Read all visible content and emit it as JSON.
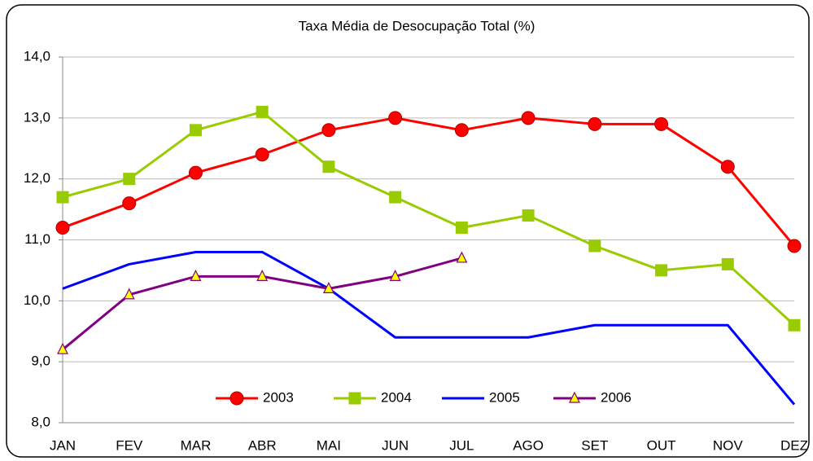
{
  "chart_data": {
    "type": "line",
    "title": "Taxa Média de Desocupação Total (%)",
    "categories": [
      "JAN",
      "FEV",
      "MAR",
      "ABR",
      "MAI",
      "JUN",
      "JUL",
      "AGO",
      "SET",
      "OUT",
      "NOV",
      "DEZ"
    ],
    "series": [
      {
        "name": "2003",
        "color": "#ff0000",
        "marker": "circle",
        "values": [
          11.2,
          11.6,
          12.1,
          12.4,
          12.8,
          13.0,
          12.8,
          13.0,
          12.9,
          12.9,
          12.2,
          10.9
        ]
      },
      {
        "name": "2004",
        "color": "#99cc00",
        "marker": "square",
        "values": [
          11.7,
          12.0,
          12.8,
          13.1,
          12.2,
          11.7,
          11.2,
          11.4,
          10.9,
          10.5,
          10.6,
          9.6
        ]
      },
      {
        "name": "2005",
        "color": "#0000ff",
        "marker": "none",
        "values": [
          10.2,
          10.6,
          10.8,
          10.8,
          10.2,
          9.4,
          9.4,
          9.4,
          9.6,
          9.6,
          9.6,
          8.3
        ]
      },
      {
        "name": "2006",
        "color": "#800080",
        "marker": "triangle",
        "values": [
          9.2,
          10.1,
          10.4,
          10.4,
          10.2,
          10.4,
          10.7,
          null,
          null,
          null,
          null,
          null
        ]
      }
    ],
    "ylim": [
      8,
      14
    ],
    "yticks": [
      {
        "value": 8,
        "label": "8,0"
      },
      {
        "value": 9,
        "label": "9,0"
      },
      {
        "value": 10,
        "label": "10,0"
      },
      {
        "value": 11,
        "label": "11,0"
      },
      {
        "value": 12,
        "label": "12,0"
      },
      {
        "value": 13,
        "label": "13,0"
      },
      {
        "value": 14,
        "label": "14,0"
      }
    ],
    "grid": true,
    "legend": "bottom"
  }
}
